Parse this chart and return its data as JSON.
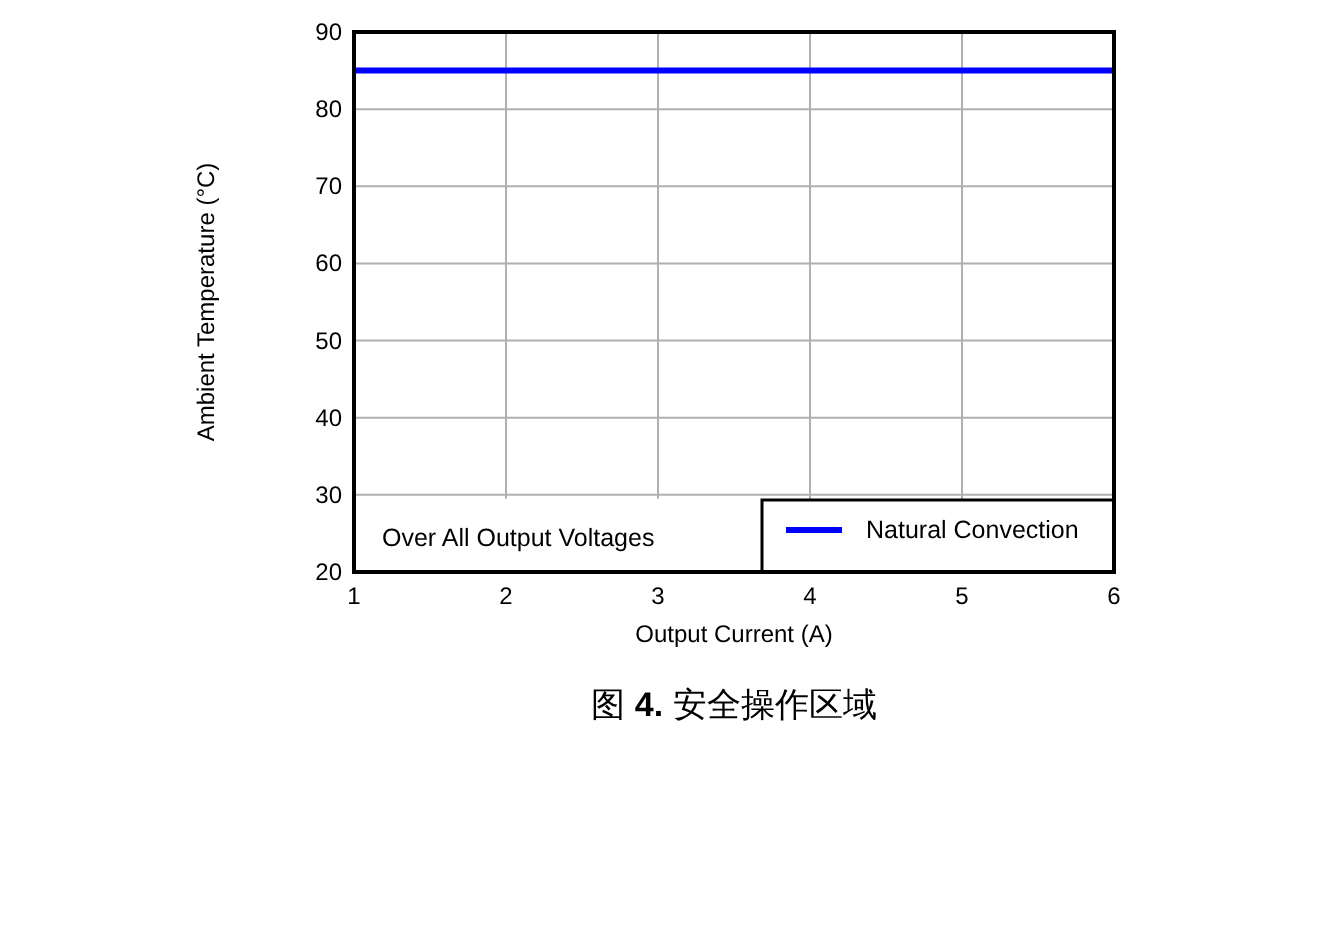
{
  "chart_data": {
    "type": "line",
    "xlabel": "Output Current (A)",
    "ylabel": "Ambient Temperature (°C)",
    "x": [
      1,
      6
    ],
    "series": [
      {
        "name": "Natural Convection",
        "color": "#0000ff",
        "values": [
          85,
          85
        ]
      }
    ],
    "xlim": [
      1,
      6
    ],
    "ylim": [
      20,
      90
    ],
    "xticks": [
      1,
      2,
      3,
      4,
      5,
      6
    ],
    "yticks": [
      20,
      30,
      40,
      50,
      60,
      70,
      80,
      90
    ],
    "grid": true,
    "legend": "bottom right",
    "annotations": [
      "Over All Output Voltages",
      "图 **4.** 安全操作区域"
    ]
  }
}
